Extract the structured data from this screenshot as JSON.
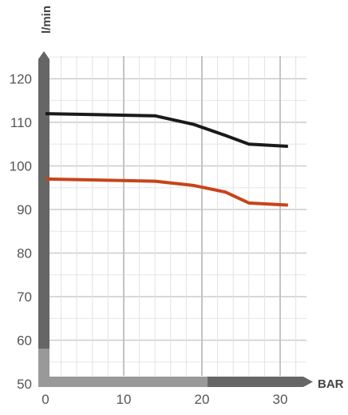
{
  "chart_data": {
    "type": "line",
    "title": "",
    "xlabel": "BAR",
    "ylabel": "l/min",
    "xlim": [
      0,
      30
    ],
    "ylim": [
      50,
      125
    ],
    "x_ticks": [
      "0",
      "10",
      "20",
      "30"
    ],
    "y_ticks": [
      "50",
      "60",
      "70",
      "80",
      "90",
      "100",
      "110",
      "120"
    ],
    "grid": true,
    "colors": {
      "upper": "#1a1a1a",
      "lower": "#c8441a",
      "axis_dark": "#666666",
      "axis_light": "#999999",
      "grid": "#cccccc"
    },
    "series": [
      {
        "x": [
          0,
          14,
          19,
          23,
          26,
          31
        ],
        "y": [
          112,
          111.5,
          109.5,
          107,
          105,
          104.5
        ]
      },
      {
        "x": [
          0,
          14,
          19,
          23,
          26,
          31
        ],
        "y": [
          97,
          96.5,
          95.5,
          94,
          91.5,
          91
        ]
      }
    ]
  }
}
